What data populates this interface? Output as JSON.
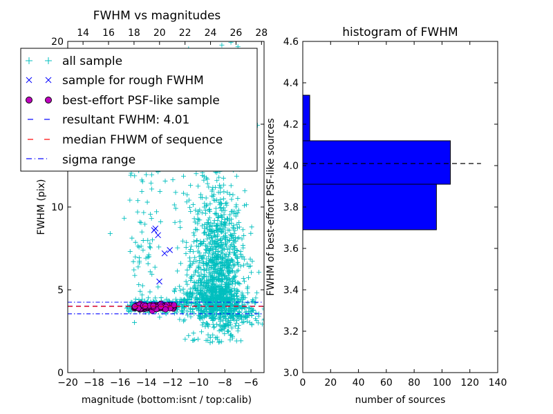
{
  "chart_data": [
    {
      "type": "scatter",
      "title": "FWHM vs magnitudes",
      "xlabel": "magnitude (bottom:isnt / top:calib)",
      "ylabel": "FWHM (pix)",
      "xlim": [
        -20,
        -5
      ],
      "ylim": [
        0,
        20
      ],
      "xticks": [
        -20,
        -18,
        -16,
        -14,
        -12,
        -10,
        -8,
        -6
      ],
      "xtick_labels": [
        "−20",
        "−18",
        "−16",
        "−14",
        "−12",
        "−10",
        "−8",
        "−6"
      ],
      "yticks": [
        0,
        5,
        10,
        15,
        20
      ],
      "ytick_labels": [
        "0",
        "5",
        "10",
        "15",
        "20"
      ],
      "top_axis": {
        "xlim": [
          12.8,
          28.2
        ],
        "ticks": [
          14,
          16,
          18,
          20,
          22,
          24,
          26,
          28
        ],
        "labels": [
          "14",
          "16",
          "18",
          "20",
          "22",
          "24",
          "26",
          "28"
        ]
      },
      "legend": {
        "placement": "upper-left",
        "entries": [
          "all sample",
          "sample for rough FWHM",
          "best-effort PSF-like sample",
          "resultant FWHM: 4.01",
          "median FHWM of sequence",
          "sigma range"
        ]
      },
      "series": [
        {
          "name": "all sample",
          "marker": "plus",
          "color": "#00bfbf",
          "clusters": [
            {
              "x_center": -8.6,
              "x_spread": 1.1,
              "y_center": 6.5,
              "y_spread": 2.3,
              "count": 900
            },
            {
              "x_center": -8.8,
              "x_spread": 1.3,
              "y_center": 4.4,
              "y_spread": 0.5,
              "count": 450
            },
            {
              "x_center": -9.0,
              "x_spread": 1.4,
              "y_center": 14.0,
              "y_spread": 3.5,
              "count": 150
            },
            {
              "x_center": -13.5,
              "x_spread": 1.1,
              "y_center": 13.0,
              "y_spread": 2.5,
              "count": 70
            },
            {
              "x_center": -14.2,
              "x_spread": 0.6,
              "y_center": 7.0,
              "y_spread": 1.5,
              "count": 45
            },
            {
              "x_center": -13.2,
              "x_spread": 1.2,
              "y_center": 4.0,
              "y_spread": 0.18,
              "count": 220
            },
            {
              "x_center": -7.0,
              "x_spread": 1.2,
              "y_center": 3.6,
              "y_spread": 0.4,
              "count": 120
            }
          ]
        },
        {
          "name": "sample for rough FWHM",
          "marker": "x",
          "color": "#0000ff",
          "x": [
            -13.3,
            -13.4,
            -13.1,
            -12.6,
            -12.2,
            -13.0
          ],
          "y": [
            8.7,
            8.6,
            8.3,
            7.2,
            7.4,
            5.5
          ]
        },
        {
          "name": "best-effort PSF-like sample",
          "marker": "circle",
          "color": "#bf00bf",
          "clusters": [
            {
              "x_center": -13.4,
              "x_spread": 0.9,
              "y_center": 3.98,
              "y_spread": 0.08,
              "count": 190
            }
          ]
        }
      ],
      "reference_lines": [
        {
          "name": "resultant FWHM: 4.01",
          "y": 4.01,
          "color": "#0000ff",
          "style": "dashed"
        },
        {
          "name": "median FHWM of sequence",
          "y": 4.0,
          "color": "#ff0000",
          "style": "dashed"
        },
        {
          "name": "sigma range",
          "y": [
            3.55,
            4.25
          ],
          "color": "#0000ff",
          "style": "dashdot"
        }
      ],
      "colors": {
        "all": "#00bfbf",
        "rough": "#0000ff",
        "psf": "#bf00bf",
        "median": "#ff0000",
        "sigma": "#0000ff"
      }
    },
    {
      "type": "bar",
      "orientation": "horizontal",
      "title": "histogram of FWHM",
      "xlabel": "number of sources",
      "ylabel": "FWHM of best-effort PSF-like sources",
      "xlim": [
        0,
        140
      ],
      "ylim": [
        3.0,
        4.6
      ],
      "xticks": [
        0,
        20,
        40,
        60,
        80,
        100,
        120,
        140
      ],
      "xtick_labels": [
        "0",
        "20",
        "40",
        "60",
        "80",
        "100",
        "120",
        "140"
      ],
      "yticks": [
        3.0,
        3.2,
        3.4,
        3.6,
        3.8,
        4.0,
        4.2,
        4.4,
        4.6
      ],
      "ytick_labels": [
        "3.0",
        "3.2",
        "3.4",
        "3.6",
        "3.8",
        "4.0",
        "4.2",
        "4.4",
        "4.6"
      ],
      "bins": [
        {
          "y_from": 3.69,
          "y_to": 3.91,
          "count": 96
        },
        {
          "y_from": 3.91,
          "y_to": 4.12,
          "count": 106
        },
        {
          "y_from": 4.12,
          "y_to": 4.34,
          "count": 5
        }
      ],
      "reference_line": {
        "y": 4.01,
        "x_from": 0,
        "x_to": 128,
        "color": "#000000",
        "style": "dashed"
      },
      "bar_color": "#0000ff"
    }
  ]
}
